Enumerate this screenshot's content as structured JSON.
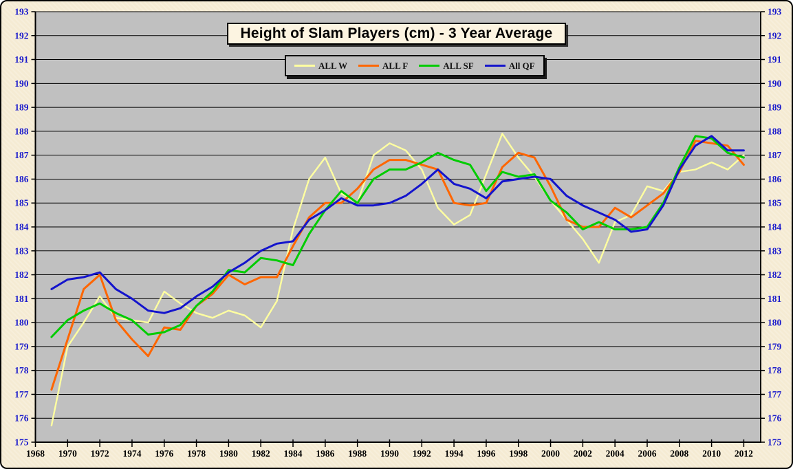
{
  "title": "Height of Slam Players (cm) - 3 Year Average",
  "colors": {
    "plot_background": "#C0C0C0",
    "page_background": "#F5EBD3",
    "gridline": "#000000",
    "y_tick_label": "#1a1acc",
    "x_tick_label": "#000000",
    "series_all_w": "#FFFFA0",
    "series_all_f": "#FF6600",
    "series_all_sf": "#00CC00",
    "series_all_qf": "#1414CC"
  },
  "chart_data": {
    "type": "line",
    "title": "Height of Slam Players (cm) - 3 Year Average",
    "xlabel": "",
    "ylabel": "",
    "grid": "horizontal",
    "legend_position": "top-center",
    "xlim": [
      1968,
      2013.05
    ],
    "ylim": [
      175,
      193
    ],
    "xtick_start": 1968,
    "xtick_end": 2012,
    "xtick_step": 2,
    "ytick_step": 1,
    "x": [
      1969,
      1970,
      1971,
      1972,
      1973,
      1974,
      1975,
      1976,
      1977,
      1978,
      1979,
      1980,
      1981,
      1982,
      1983,
      1984,
      1985,
      1986,
      1987,
      1988,
      1989,
      1990,
      1991,
      1992,
      1993,
      1994,
      1995,
      1996,
      1997,
      1998,
      1999,
      2000,
      2001,
      2002,
      2003,
      2004,
      2005,
      2006,
      2007,
      2008,
      2009,
      2010,
      2011,
      2012
    ],
    "series": [
      {
        "name": "ALL W",
        "color": "#FFFFA0",
        "width": 2.4,
        "values": [
          175.7,
          179.0,
          180.0,
          181.1,
          180.2,
          180.1,
          180.0,
          181.3,
          180.8,
          180.4,
          180.2,
          180.5,
          180.3,
          179.8,
          180.9,
          183.9,
          186.0,
          186.9,
          185.4,
          185.0,
          187.0,
          187.5,
          187.2,
          186.4,
          184.8,
          184.1,
          184.5,
          186.2,
          187.9,
          186.9,
          186.1,
          185.1,
          184.3,
          183.5,
          182.5,
          184.2,
          184.5,
          185.7,
          185.5,
          186.3,
          186.4,
          186.7,
          186.4,
          187.0
        ]
      },
      {
        "name": "ALL F",
        "color": "#FF6600",
        "width": 3,
        "values": [
          177.2,
          179.3,
          181.4,
          182.0,
          180.1,
          179.3,
          178.6,
          179.8,
          179.7,
          180.7,
          181.2,
          182.0,
          181.6,
          181.9,
          181.9,
          183.2,
          184.4,
          185.0,
          185.0,
          185.6,
          186.4,
          186.8,
          186.8,
          186.6,
          186.4,
          185.0,
          184.9,
          185.0,
          186.5,
          187.1,
          186.9,
          185.7,
          184.3,
          184.0,
          184.0,
          184.8,
          184.4,
          184.9,
          185.4,
          186.3,
          187.6,
          187.5,
          187.4,
          186.6
        ]
      },
      {
        "name": "ALL SF",
        "color": "#00CC00",
        "width": 3,
        "values": [
          179.4,
          180.1,
          180.5,
          180.8,
          180.4,
          180.1,
          179.5,
          179.6,
          179.9,
          180.7,
          181.3,
          182.2,
          182.1,
          182.7,
          182.6,
          182.4,
          183.7,
          184.7,
          185.5,
          185.0,
          186.0,
          186.4,
          186.4,
          186.7,
          187.1,
          186.8,
          186.6,
          185.5,
          186.3,
          186.1,
          186.2,
          185.1,
          184.6,
          183.9,
          184.2,
          183.9,
          183.9,
          184.0,
          185.0,
          186.5,
          187.8,
          187.7,
          187.1,
          186.9
        ]
      },
      {
        "name": "All QF",
        "color": "#1414CC",
        "width": 3,
        "values": [
          181.4,
          181.8,
          181.9,
          182.1,
          181.4,
          181.0,
          180.5,
          180.4,
          180.6,
          181.1,
          181.5,
          182.1,
          182.5,
          183.0,
          183.3,
          183.4,
          184.3,
          184.7,
          185.2,
          184.9,
          184.9,
          185.0,
          185.3,
          185.8,
          186.4,
          185.8,
          185.6,
          185.2,
          185.9,
          186.0,
          186.1,
          186.0,
          185.3,
          184.9,
          184.6,
          184.3,
          183.8,
          183.9,
          184.9,
          186.4,
          187.4,
          187.8,
          187.2,
          187.2
        ]
      }
    ]
  }
}
